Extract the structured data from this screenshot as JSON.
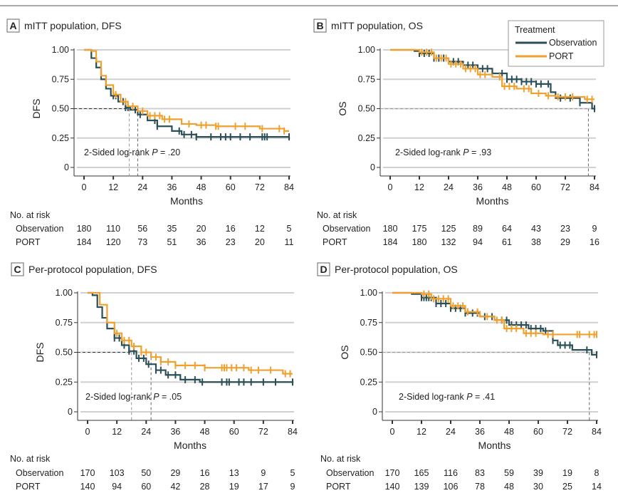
{
  "legend": {
    "title": "Treatment",
    "items": [
      "Observation",
      "PORT"
    ],
    "placement": "top-right of panel B"
  },
  "colors": {
    "Observation": "#2b4f57",
    "PORT": "#f0a02e"
  },
  "chart_data": [
    {
      "type": "line",
      "step": true,
      "letter": "A",
      "title": "mITT population, DFS",
      "xlabel": "Months",
      "ylabel": "DFS",
      "xlim": [
        0,
        84
      ],
      "ylim": [
        0,
        1
      ],
      "xticks": [
        "0",
        "12",
        "24",
        "36",
        "48",
        "60",
        "72",
        "84"
      ],
      "yticks": [
        "0",
        "0.25",
        "0.50",
        "0.75",
        "1.00"
      ],
      "annotation": {
        "prefix": "2-Sided log-rank ",
        "p": "P",
        "value": " = .20"
      },
      "medians": [
        18.5,
        22
      ],
      "series": [
        {
          "name": "Observation",
          "points": [
            [
              0,
              1
            ],
            [
              2,
              1
            ],
            [
              3,
              0.93
            ],
            [
              5,
              0.85
            ],
            [
              7,
              0.75
            ],
            [
              9,
              0.67
            ],
            [
              11,
              0.61
            ],
            [
              14,
              0.56
            ],
            [
              17,
              0.51
            ],
            [
              19,
              0.49
            ],
            [
              22,
              0.45
            ],
            [
              26,
              0.4
            ],
            [
              30,
              0.35
            ],
            [
              36,
              0.31
            ],
            [
              40,
              0.28
            ],
            [
              46,
              0.26
            ],
            [
              84,
              0.26
            ]
          ],
          "censored": [
            12,
            13,
            16,
            17,
            18,
            21,
            23,
            29,
            30,
            39,
            41,
            44,
            46,
            52,
            56,
            58,
            60,
            64,
            68,
            73,
            74,
            75,
            84
          ]
        },
        {
          "name": "PORT",
          "points": [
            [
              0,
              1
            ],
            [
              3,
              0.99
            ],
            [
              5,
              0.9
            ],
            [
              7,
              0.78
            ],
            [
              9,
              0.7
            ],
            [
              12,
              0.62
            ],
            [
              15,
              0.56
            ],
            [
              18,
              0.52
            ],
            [
              22,
              0.48
            ],
            [
              26,
              0.44
            ],
            [
              32,
              0.41
            ],
            [
              40,
              0.37
            ],
            [
              46,
              0.36
            ],
            [
              54,
              0.35
            ],
            [
              72,
              0.33
            ],
            [
              82,
              0.31
            ],
            [
              84,
              0.31
            ]
          ],
          "censored": [
            13,
            17,
            20,
            24,
            27,
            29,
            31,
            33,
            35,
            43,
            48,
            50,
            54,
            55,
            62,
            66,
            73,
            80,
            82
          ]
        }
      ],
      "risk_table": {
        "header": "No. at risk",
        "rows": [
          {
            "label": "Observation",
            "values": [
              "180",
              "110",
              "56",
              "35",
              "20",
              "16",
              "12",
              "5"
            ]
          },
          {
            "label": "PORT",
            "values": [
              "184",
              "120",
              "73",
              "51",
              "36",
              "23",
              "20",
              "11"
            ]
          }
        ]
      }
    },
    {
      "type": "line",
      "step": true,
      "letter": "B",
      "title": "mITT population, OS",
      "xlabel": "Months",
      "ylabel": "OS",
      "xlim": [
        0,
        84
      ],
      "ylim": [
        0,
        1
      ],
      "xticks": [
        "0",
        "12",
        "24",
        "36",
        "48",
        "60",
        "72",
        "84"
      ],
      "yticks": [
        "0",
        "0.25",
        "0.50",
        "0.75",
        "1.00"
      ],
      "annotation": {
        "prefix": "2-Sided log-rank ",
        "p": "P",
        "value": " = .93"
      },
      "medians": [
        81.5
      ],
      "series": [
        {
          "name": "Observation",
          "points": [
            [
              0,
              1
            ],
            [
              10,
              0.99
            ],
            [
              12,
              0.97
            ],
            [
              18,
              0.93
            ],
            [
              24,
              0.9
            ],
            [
              30,
              0.87
            ],
            [
              36,
              0.84
            ],
            [
              42,
              0.8
            ],
            [
              48,
              0.75
            ],
            [
              54,
              0.73
            ],
            [
              60,
              0.71
            ],
            [
              66,
              0.64
            ],
            [
              68,
              0.59
            ],
            [
              78,
              0.55
            ],
            [
              83,
              0.5
            ],
            [
              84,
              0.5
            ]
          ],
          "censored": [
            12,
            14,
            16,
            18,
            20,
            22,
            26,
            28,
            30,
            32,
            34,
            36,
            38,
            40,
            42,
            46,
            48,
            50,
            52,
            54,
            56,
            58,
            60,
            62,
            65,
            70,
            74,
            78,
            84
          ]
        },
        {
          "name": "PORT",
          "points": [
            [
              0,
              1
            ],
            [
              12,
              0.98
            ],
            [
              18,
              0.93
            ],
            [
              24,
              0.88
            ],
            [
              30,
              0.84
            ],
            [
              36,
              0.79
            ],
            [
              42,
              0.77
            ],
            [
              46,
              0.69
            ],
            [
              52,
              0.67
            ],
            [
              58,
              0.63
            ],
            [
              64,
              0.61
            ],
            [
              68,
              0.6
            ],
            [
              80,
              0.58
            ],
            [
              84,
              0.58
            ]
          ],
          "censored": [
            13,
            15,
            17,
            19,
            21,
            23,
            25,
            27,
            29,
            31,
            33,
            35,
            37,
            39,
            45,
            47,
            49,
            51,
            55,
            57,
            61,
            65,
            69,
            72,
            75,
            81,
            83
          ]
        }
      ],
      "risk_table": {
        "header": "No. at risk",
        "rows": [
          {
            "label": "Observation",
            "values": [
              "180",
              "175",
              "125",
              "89",
              "64",
              "43",
              "23",
              "9"
            ]
          },
          {
            "label": "PORT",
            "values": [
              "184",
              "180",
              "132",
              "94",
              "61",
              "38",
              "29",
              "16"
            ]
          }
        ]
      }
    },
    {
      "type": "line",
      "step": true,
      "letter": "C",
      "title": "Per-protocol population, DFS",
      "xlabel": "Months",
      "ylabel": "DFS",
      "xlim": [
        0,
        84
      ],
      "ylim": [
        0,
        1
      ],
      "xticks": [
        "0",
        "12",
        "24",
        "36",
        "48",
        "60",
        "72",
        "84"
      ],
      "yticks": [
        "0",
        "0.25",
        "0.50",
        "0.75",
        "1.00"
      ],
      "annotation": {
        "prefix": "2-Sided log-rank ",
        "p": "P",
        "value": " = .05"
      },
      "medians": [
        18,
        26
      ],
      "series": [
        {
          "name": "Observation",
          "points": [
            [
              0,
              1
            ],
            [
              2,
              0.98
            ],
            [
              4,
              0.88
            ],
            [
              6,
              0.79
            ],
            [
              8,
              0.7
            ],
            [
              11,
              0.62
            ],
            [
              14,
              0.56
            ],
            [
              17,
              0.51
            ],
            [
              20,
              0.45
            ],
            [
              24,
              0.4
            ],
            [
              28,
              0.35
            ],
            [
              32,
              0.31
            ],
            [
              38,
              0.27
            ],
            [
              46,
              0.25
            ],
            [
              84,
              0.25
            ]
          ],
          "censored": [
            11,
            13,
            15,
            17,
            19,
            21,
            23,
            25,
            28,
            30,
            33,
            36,
            40,
            44,
            47,
            55,
            57,
            58,
            62,
            64,
            67,
            72,
            77,
            84
          ]
        },
        {
          "name": "PORT",
          "points": [
            [
              0,
              1
            ],
            [
              3,
              1
            ],
            [
              5,
              0.9
            ],
            [
              8,
              0.75
            ],
            [
              11,
              0.66
            ],
            [
              14,
              0.6
            ],
            [
              18,
              0.55
            ],
            [
              22,
              0.5
            ],
            [
              26,
              0.46
            ],
            [
              30,
              0.42
            ],
            [
              36,
              0.39
            ],
            [
              48,
              0.37
            ],
            [
              66,
              0.35
            ],
            [
              80,
              0.32
            ],
            [
              84,
              0.32
            ]
          ],
          "censored": [
            12,
            15,
            17,
            19,
            22,
            24,
            28,
            30,
            33,
            36,
            40,
            44,
            48,
            55,
            56,
            57,
            59,
            61,
            64,
            67,
            70,
            75,
            81,
            83
          ]
        }
      ],
      "risk_table": {
        "header": "No. at risk",
        "rows": [
          {
            "label": "Observation",
            "values": [
              "170",
              "103",
              "50",
              "29",
              "16",
              "13",
              "9",
              "5"
            ]
          },
          {
            "label": "PORT",
            "values": [
              "140",
              "94",
              "60",
              "42",
              "28",
              "19",
              "17",
              "9"
            ]
          }
        ]
      }
    },
    {
      "type": "line",
      "step": true,
      "letter": "D",
      "title": "Per-protocol population, OS",
      "xlabel": "Months",
      "ylabel": "OS",
      "xlim": [
        0,
        84
      ],
      "ylim": [
        0,
        1
      ],
      "xticks": [
        "0",
        "12",
        "24",
        "36",
        "48",
        "60",
        "72",
        "84"
      ],
      "yticks": [
        "0",
        "0.25",
        "0.50",
        "0.75",
        "1.00"
      ],
      "annotation": {
        "prefix": "2-Sided log-rank ",
        "p": "P",
        "value": " = .41"
      },
      "medians": [
        81
      ],
      "series": [
        {
          "name": "Observation",
          "points": [
            [
              0,
              1
            ],
            [
              8,
              0.99
            ],
            [
              12,
              0.96
            ],
            [
              18,
              0.91
            ],
            [
              24,
              0.87
            ],
            [
              30,
              0.83
            ],
            [
              36,
              0.8
            ],
            [
              42,
              0.77
            ],
            [
              48,
              0.73
            ],
            [
              56,
              0.7
            ],
            [
              62,
              0.68
            ],
            [
              66,
              0.6
            ],
            [
              68,
              0.56
            ],
            [
              74,
              0.52
            ],
            [
              82,
              0.48
            ],
            [
              84,
              0.48
            ]
          ],
          "censored": [
            12,
            13,
            14,
            15,
            16,
            18,
            20,
            22,
            24,
            26,
            28,
            30,
            33,
            35,
            38,
            41,
            45,
            47,
            49,
            51,
            53,
            55,
            57,
            59,
            61,
            63,
            66,
            69,
            71,
            73,
            80,
            84
          ]
        },
        {
          "name": "PORT",
          "points": [
            [
              0,
              1
            ],
            [
              12,
              0.99
            ],
            [
              16,
              0.95
            ],
            [
              24,
              0.89
            ],
            [
              30,
              0.84
            ],
            [
              36,
              0.8
            ],
            [
              42,
              0.77
            ],
            [
              46,
              0.7
            ],
            [
              54,
              0.66
            ],
            [
              62,
              0.65
            ],
            [
              84,
              0.65
            ]
          ],
          "censored": [
            13,
            15,
            17,
            19,
            21,
            23,
            25,
            27,
            29,
            31,
            35,
            39,
            43,
            45,
            47,
            49,
            51,
            55,
            57,
            59,
            64,
            66,
            76,
            77,
            81,
            83,
            84
          ]
        }
      ],
      "risk_table": {
        "header": "No. at risk",
        "rows": [
          {
            "label": "Observation",
            "values": [
              "170",
              "165",
              "116",
              "83",
              "59",
              "39",
              "19",
              "8"
            ]
          },
          {
            "label": "PORT",
            "values": [
              "140",
              "139",
              "106",
              "78",
              "48",
              "30",
              "25",
              "14"
            ]
          }
        ]
      }
    }
  ]
}
